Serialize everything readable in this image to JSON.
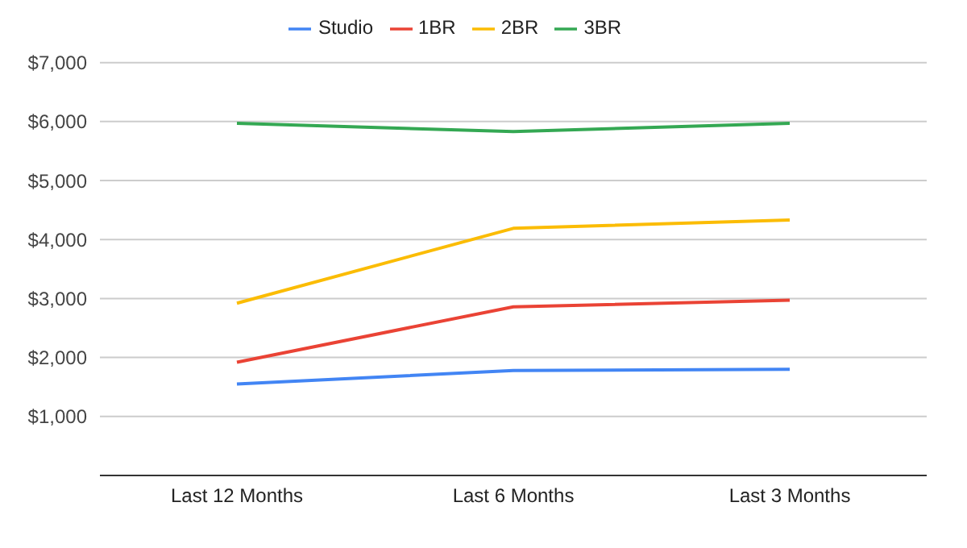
{
  "chart_data": {
    "type": "line",
    "categories": [
      "Last 12 Months",
      "Last 6 Months",
      "Last 3 Months"
    ],
    "series": [
      {
        "name": "Studio",
        "color": "#4285f4",
        "values": [
          1550,
          1780,
          1800
        ]
      },
      {
        "name": "1BR",
        "color": "#ea4335",
        "values": [
          1920,
          2860,
          2970
        ]
      },
      {
        "name": "2BR",
        "color": "#fbbc04",
        "values": [
          2920,
          4190,
          4330
        ]
      },
      {
        "name": "3BR",
        "color": "#34a853",
        "values": [
          5970,
          5830,
          5970
        ]
      }
    ],
    "ylim": [
      0,
      7000
    ],
    "yticks": [
      {
        "value": 0,
        "label": null
      },
      {
        "value": 1000,
        "label": "$1,000"
      },
      {
        "value": 2000,
        "label": "$2,000"
      },
      {
        "value": 3000,
        "label": "$3,000"
      },
      {
        "value": 4000,
        "label": "$4,000"
      },
      {
        "value": 5000,
        "label": "$5,000"
      },
      {
        "value": 6000,
        "label": "$6,000"
      },
      {
        "value": 7000,
        "label": "$7,000"
      }
    ],
    "grid": "y",
    "legend": "top",
    "marker": "none",
    "line_style": "solid"
  }
}
